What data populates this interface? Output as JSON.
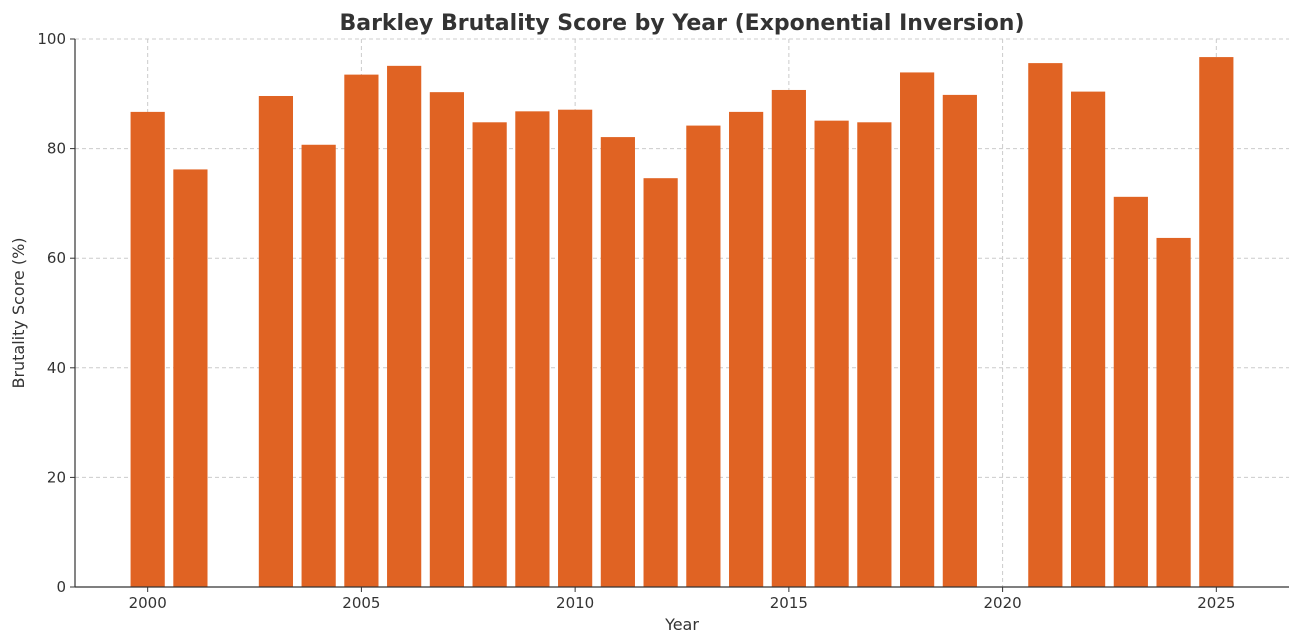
{
  "chart_data": {
    "type": "bar",
    "title": "Barkley Brutality Score by Year (Exponential Inversion)",
    "xlabel": "Year",
    "ylabel": "Brutality Score (%)",
    "ylim": [
      0,
      100
    ],
    "xlim": [
      1998.3,
      2026.7
    ],
    "xticks": [
      2000,
      2005,
      2010,
      2015,
      2020,
      2025
    ],
    "yticks": [
      0,
      20,
      40,
      60,
      80,
      100
    ],
    "grid": true,
    "bar_color": "#e06323",
    "categories": [
      2000,
      2001,
      2003,
      2004,
      2005,
      2006,
      2007,
      2008,
      2009,
      2010,
      2011,
      2012,
      2013,
      2014,
      2015,
      2016,
      2017,
      2018,
      2019,
      2021,
      2022,
      2023,
      2024,
      2025
    ],
    "values": [
      86.7,
      76.2,
      89.6,
      80.7,
      93.5,
      95.1,
      90.3,
      84.8,
      86.8,
      87.1,
      82.1,
      74.6,
      84.2,
      86.7,
      90.7,
      85.1,
      84.8,
      93.9,
      89.8,
      95.6,
      90.4,
      71.2,
      63.7,
      96.7
    ]
  }
}
